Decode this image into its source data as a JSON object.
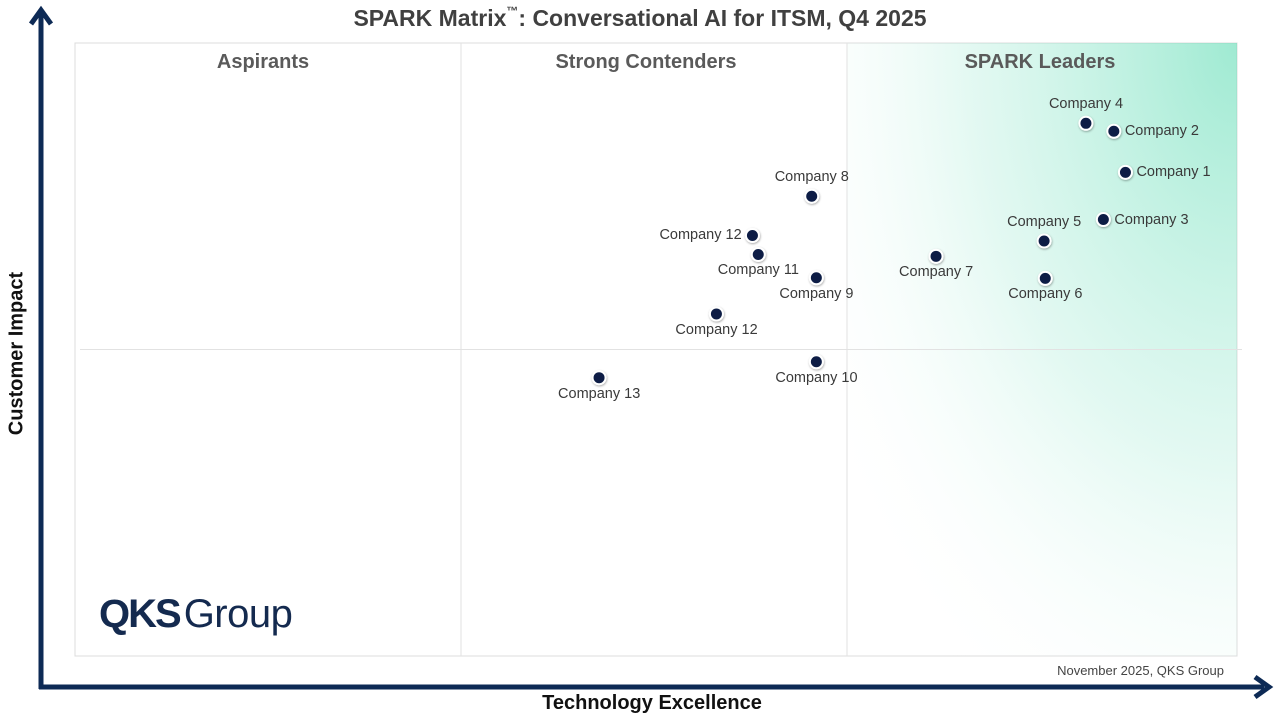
{
  "chart_data": {
    "type": "scatter",
    "title_main": "SPARK Matrix",
    "title_tm": "™",
    "title_rest": ": Conversational AI for ITSM, Q4 2025",
    "xlabel": "Technology Excellence",
    "ylabel": "Customer Impact",
    "quadrants": [
      "Aspirants",
      "Strong Contenders",
      "SPARK Leaders"
    ],
    "logo_bold": "QKS",
    "logo_regular": "Group",
    "footnote": "November 2025, QKS Group",
    "xlim": [
      0,
      100
    ],
    "ylim": [
      0,
      100
    ],
    "dividers": {
      "x": [
        33.3,
        66.7
      ],
      "y": 50
    },
    "grid": false,
    "point_color": "#0d1f45",
    "axis_color": "#0d2a55",
    "leader_gradient": "#5fdcb4",
    "points": [
      {
        "name": "Company 4",
        "x": 87.0,
        "y": 86.9,
        "label_pos": "top"
      },
      {
        "name": "Company 2",
        "x": 89.4,
        "y": 85.6,
        "label_pos": "right"
      },
      {
        "name": "Company 1",
        "x": 90.4,
        "y": 78.9,
        "label_pos": "right"
      },
      {
        "name": "Company 8",
        "x": 63.4,
        "y": 75.0,
        "label_pos": "top"
      },
      {
        "name": "Company 3",
        "x": 88.5,
        "y": 71.2,
        "label_pos": "right"
      },
      {
        "name": "Company 12",
        "x": 58.3,
        "y": 68.6,
        "label_pos": "left"
      },
      {
        "name": "Company 5",
        "x": 83.4,
        "y": 67.7,
        "label_pos": "top"
      },
      {
        "name": "Company 11",
        "x": 58.8,
        "y": 65.5,
        "label_pos": "bottom"
      },
      {
        "name": "Company 7",
        "x": 74.1,
        "y": 65.2,
        "label_pos": "bottom"
      },
      {
        "name": "Company 9",
        "x": 63.8,
        "y": 61.7,
        "label_pos": "bottom"
      },
      {
        "name": "Company 6",
        "x": 83.5,
        "y": 61.6,
        "label_pos": "bottom"
      },
      {
        "name": "Company 12",
        "x": 55.2,
        "y": 55.8,
        "label_pos": "bottom"
      },
      {
        "name": "Company 10",
        "x": 63.8,
        "y": 48.0,
        "label_pos": "bottom"
      },
      {
        "name": "Company 13",
        "x": 45.1,
        "y": 45.4,
        "label_pos": "bottom"
      }
    ]
  }
}
